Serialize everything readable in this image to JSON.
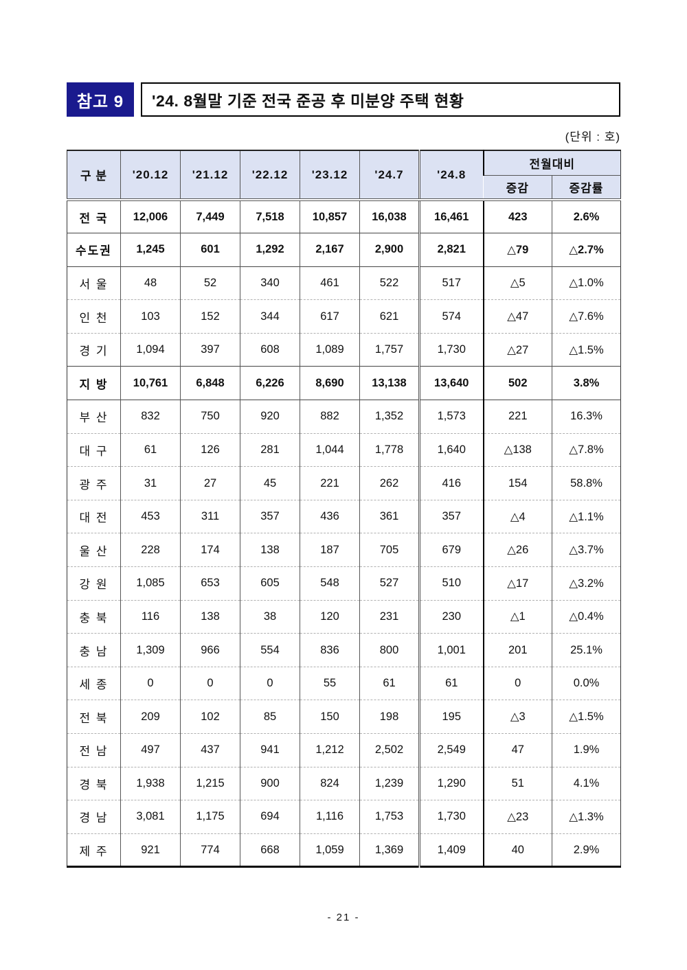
{
  "page": {
    "badge": "참고 9",
    "title": "'24. 8월말 기준 전국 준공 후 미분양 주택 현황",
    "unit_label": "(단위 : 호)",
    "page_number": "- 21 -"
  },
  "colors": {
    "badge_bg": "#1a1a8e",
    "header_bg": "#dce2f3"
  },
  "table": {
    "col_group_header": "전월대비",
    "columns": [
      "구 분",
      "'20.12",
      "'21.12",
      "'22.12",
      "'23.12",
      "'24.7",
      "'24.8",
      "증감",
      "증감률"
    ],
    "rows": [
      {
        "label": "전 국",
        "bold": true,
        "values": [
          "12,006",
          "7,449",
          "7,518",
          "10,857",
          "16,038",
          "16,461",
          "423",
          "2.6%"
        ]
      },
      {
        "label": "수도권",
        "bold": true,
        "values": [
          "1,245",
          "601",
          "1,292",
          "2,167",
          "2,900",
          "2,821",
          "△79",
          "△2.7%"
        ]
      },
      {
        "label": "서 울",
        "bold": false,
        "values": [
          "48",
          "52",
          "340",
          "461",
          "522",
          "517",
          "△5",
          "△1.0%"
        ]
      },
      {
        "label": "인 천",
        "bold": false,
        "values": [
          "103",
          "152",
          "344",
          "617",
          "621",
          "574",
          "△47",
          "△7.6%"
        ]
      },
      {
        "label": "경 기",
        "bold": false,
        "values": [
          "1,094",
          "397",
          "608",
          "1,089",
          "1,757",
          "1,730",
          "△27",
          "△1.5%"
        ]
      },
      {
        "label": "지 방",
        "bold": true,
        "values": [
          "10,761",
          "6,848",
          "6,226",
          "8,690",
          "13,138",
          "13,640",
          "502",
          "3.8%"
        ]
      },
      {
        "label": "부 산",
        "bold": false,
        "values": [
          "832",
          "750",
          "920",
          "882",
          "1,352",
          "1,573",
          "221",
          "16.3%"
        ]
      },
      {
        "label": "대 구",
        "bold": false,
        "values": [
          "61",
          "126",
          "281",
          "1,044",
          "1,778",
          "1,640",
          "△138",
          "△7.8%"
        ]
      },
      {
        "label": "광 주",
        "bold": false,
        "values": [
          "31",
          "27",
          "45",
          "221",
          "262",
          "416",
          "154",
          "58.8%"
        ]
      },
      {
        "label": "대 전",
        "bold": false,
        "values": [
          "453",
          "311",
          "357",
          "436",
          "361",
          "357",
          "△4",
          "△1.1%"
        ]
      },
      {
        "label": "울 산",
        "bold": false,
        "values": [
          "228",
          "174",
          "138",
          "187",
          "705",
          "679",
          "△26",
          "△3.7%"
        ]
      },
      {
        "label": "강 원",
        "bold": false,
        "values": [
          "1,085",
          "653",
          "605",
          "548",
          "527",
          "510",
          "△17",
          "△3.2%"
        ]
      },
      {
        "label": "충 북",
        "bold": false,
        "values": [
          "116",
          "138",
          "38",
          "120",
          "231",
          "230",
          "△1",
          "△0.4%"
        ]
      },
      {
        "label": "충 남",
        "bold": false,
        "values": [
          "1,309",
          "966",
          "554",
          "836",
          "800",
          "1,001",
          "201",
          "25.1%"
        ]
      },
      {
        "label": "세 종",
        "bold": false,
        "values": [
          "0",
          "0",
          "0",
          "55",
          "61",
          "61",
          "0",
          "0.0%"
        ]
      },
      {
        "label": "전 북",
        "bold": false,
        "values": [
          "209",
          "102",
          "85",
          "150",
          "198",
          "195",
          "△3",
          "△1.5%"
        ]
      },
      {
        "label": "전 남",
        "bold": false,
        "values": [
          "497",
          "437",
          "941",
          "1,212",
          "2,502",
          "2,549",
          "47",
          "1.9%"
        ]
      },
      {
        "label": "경 북",
        "bold": false,
        "values": [
          "1,938",
          "1,215",
          "900",
          "824",
          "1,239",
          "1,290",
          "51",
          "4.1%"
        ]
      },
      {
        "label": "경 남",
        "bold": false,
        "values": [
          "3,081",
          "1,175",
          "694",
          "1,116",
          "1,753",
          "1,730",
          "△23",
          "△1.3%"
        ]
      },
      {
        "label": "제 주",
        "bold": false,
        "values": [
          "921",
          "774",
          "668",
          "1,059",
          "1,369",
          "1,409",
          "40",
          "2.9%"
        ]
      }
    ]
  }
}
